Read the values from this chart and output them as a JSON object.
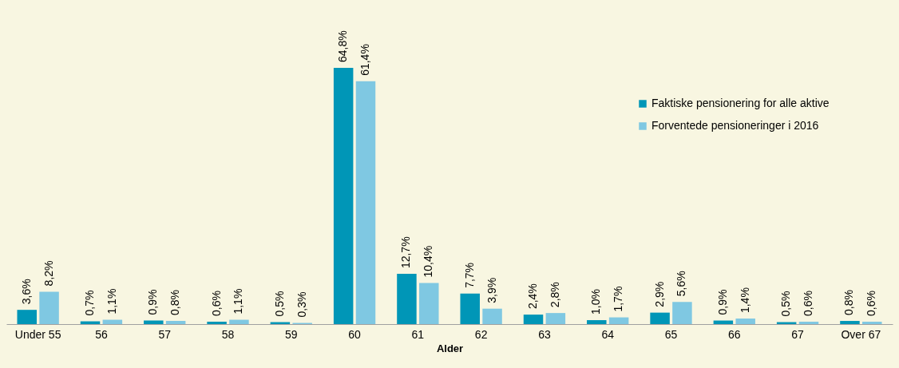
{
  "chart_data": {
    "type": "bar",
    "xlabel": "Alder",
    "categories": [
      "Under 55",
      "56",
      "57",
      "58",
      "59",
      "60",
      "61",
      "62",
      "63",
      "64",
      "65",
      "66",
      "67",
      "Over 67"
    ],
    "series": [
      {
        "name": "Faktiske pensionering for alle aktive",
        "color": "#0096b7",
        "values": [
          3.6,
          0.7,
          0.9,
          0.6,
          0.5,
          64.8,
          12.7,
          7.7,
          2.4,
          1.0,
          2.9,
          0.9,
          0.5,
          0.8
        ],
        "value_labels": [
          "3,6%",
          "0,7%",
          "0,9%",
          "0,6%",
          "0,5%",
          "64,8%",
          "12,7%",
          "7,7%",
          "2,4%",
          "1,0%",
          "2,9%",
          "0,9%",
          "0,5%",
          "0,8%"
        ]
      },
      {
        "name": "Forventede pensioneringer i 2016",
        "color": "#7fc8e2",
        "values": [
          8.2,
          1.1,
          0.8,
          1.1,
          0.3,
          61.4,
          10.4,
          3.9,
          2.8,
          1.7,
          5.6,
          1.4,
          0.6,
          0.6
        ],
        "value_labels": [
          "8,2%",
          "1,1%",
          "0,8%",
          "1,1%",
          "0,3%",
          "61,4%",
          "10,4%",
          "3,9%",
          "2,8%",
          "1,7%",
          "5,6%",
          "1,4%",
          "0,6%",
          "0,6%"
        ]
      }
    ],
    "legend": "top right",
    "grid": false
  }
}
